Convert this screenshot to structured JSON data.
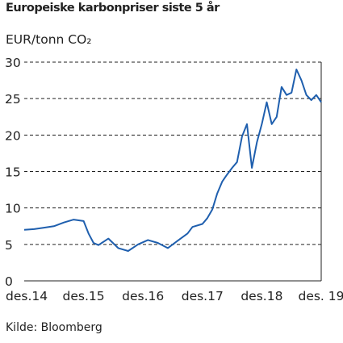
{
  "title": "Europeiske karbonpriser siste 5 år",
  "unit_label": "EUR/tonn CO₂",
  "source": "Kilde: Bloomberg",
  "colors": {
    "series": "#1f5fae",
    "grid": "#222222",
    "axis": "#222222"
  },
  "chart_data": {
    "type": "line",
    "title": "Europeiske karbonpriser siste 5 år",
    "ylabel": "EUR/tonn CO₂",
    "xlabel": "",
    "ylim": [
      0,
      30
    ],
    "yticks": [
      0,
      5,
      10,
      15,
      20,
      25,
      30
    ],
    "xticks": [
      "des.14",
      "des.15",
      "des.16",
      "des.17",
      "des.18",
      "des. 19"
    ],
    "grid": "horizontal dashed",
    "series": [
      {
        "x": [
          "2014-12",
          "2015-02",
          "2015-04",
          "2015-06",
          "2015-08",
          "2015-10",
          "2015-12",
          "2016-01",
          "2016-02",
          "2016-03",
          "2016-05",
          "2016-07",
          "2016-09",
          "2016-11",
          "2017-01",
          "2017-03",
          "2017-05",
          "2017-07",
          "2017-09",
          "2017-10",
          "2017-12",
          "2018-01",
          "2018-02",
          "2018-03",
          "2018-04",
          "2018-05",
          "2018-06",
          "2018-07",
          "2018-08",
          "2018-09",
          "2018-10",
          "2018-11",
          "2018-12",
          "2019-01",
          "2019-02",
          "2019-03",
          "2019-04",
          "2019-05",
          "2019-06",
          "2019-07",
          "2019-08",
          "2019-09",
          "2019-10",
          "2019-11",
          "2019-12"
        ],
        "values": [
          7.0,
          7.1,
          7.3,
          7.5,
          8.0,
          8.4,
          8.2,
          6.5,
          5.2,
          4.9,
          5.8,
          4.5,
          4.1,
          5.0,
          5.6,
          5.2,
          4.5,
          5.5,
          6.5,
          7.4,
          7.8,
          8.6,
          9.8,
          12.0,
          13.6,
          14.6,
          15.5,
          16.3,
          19.8,
          21.5,
          15.5,
          19.0,
          21.5,
          24.5,
          21.5,
          22.5,
          26.6,
          25.5,
          25.8,
          29.0,
          27.5,
          25.5,
          24.8,
          25.5,
          24.5
        ]
      }
    ]
  }
}
